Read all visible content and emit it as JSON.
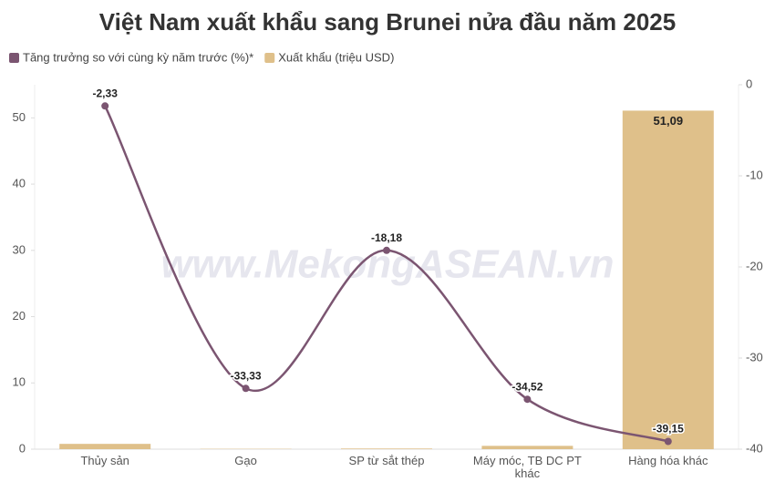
{
  "chart_data": {
    "type": "bar-line",
    "title": "Việt Nam xuất khẩu sang Brunei nửa đầu năm 2025",
    "watermark": "www.MekongASEAN.vn",
    "categories": [
      "Thủy sản",
      "Gạo",
      "SP từ sắt thép",
      "Máy móc, TB DC PT khác",
      "Hàng hóa khác"
    ],
    "series": [
      {
        "name": "Tăng trưởng so với cùng kỳ năm trước (%)*",
        "type": "line",
        "axis": "y2",
        "color": "#7b5571",
        "values": [
          -2.33,
          -33.33,
          -18.18,
          -34.52,
          -39.15
        ],
        "value_labels": [
          "-2,33",
          "-33,33",
          "-18,18",
          "-34,52",
          "-39,15"
        ]
      },
      {
        "name": "Xuất khẩu (triệu USD)",
        "type": "bar",
        "color": "#dfc08a",
        "values": [
          0.8,
          0.05,
          0.1,
          0.5,
          51.09
        ],
        "value_labels": [
          null,
          null,
          null,
          null,
          "51,09"
        ]
      }
    ],
    "ylim": [
      0,
      55
    ],
    "yticks": [
      0,
      10,
      20,
      30,
      40,
      50
    ],
    "y2lim": [
      -40,
      0
    ],
    "y2ticks": [
      0,
      -10,
      -20,
      -30,
      -40
    ],
    "grid": false
  }
}
